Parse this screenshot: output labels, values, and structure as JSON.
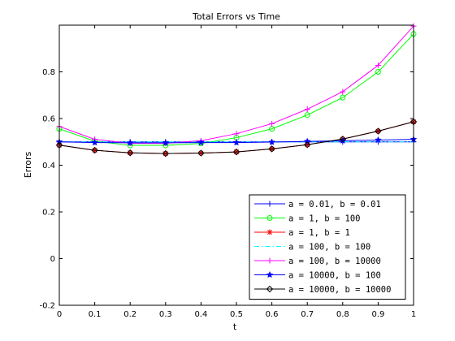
{
  "chart_data": {
    "type": "line",
    "title": "Total Errors vs Time",
    "xlabel": "t",
    "ylabel": "Errors",
    "xlim": [
      0,
      1
    ],
    "ylim": [
      -0.2,
      1
    ],
    "xticks": [
      0,
      0.1,
      0.2,
      0.3,
      0.4,
      0.5,
      0.6,
      0.7,
      0.8,
      0.9,
      1
    ],
    "xtick_labels": [
      "0",
      "0.1",
      "0.2",
      "0.3",
      "0.4",
      "0.5",
      "0.6",
      "0.7",
      "0.8",
      "0.9",
      "1"
    ],
    "yticks": [
      -0.2,
      0,
      0.2,
      0.4,
      0.6,
      0.8
    ],
    "ytick_labels": [
      "-0.2",
      "0",
      "0.2",
      "0.4",
      "0.6",
      "0.8"
    ],
    "grid": false,
    "legend_position": "bottom-right",
    "x": [
      0,
      0.1,
      0.2,
      0.3,
      0.4,
      0.5,
      0.6,
      0.7,
      0.8,
      0.9,
      1
    ],
    "series": [
      {
        "name": "a = 0.01, b = 0.01",
        "color": "#0000ff",
        "marker": "plus",
        "values": [
          0.5,
          0.5,
          0.5,
          0.5,
          0.5,
          0.5,
          0.5,
          0.5,
          0.5,
          0.5,
          0.5
        ]
      },
      {
        "name": "a = 1, b = 100",
        "color": "#00ff00",
        "marker": "circle",
        "values": [
          0.556,
          0.503,
          0.485,
          0.485,
          0.493,
          0.518,
          0.556,
          0.615,
          0.69,
          0.8,
          0.962
        ]
      },
      {
        "name": "a = 1, b = 1",
        "color": "#ff0000",
        "marker": "asterisk",
        "values": [
          0.486,
          0.464,
          0.453,
          0.45,
          0.452,
          0.457,
          0.47,
          0.488,
          0.512,
          0.546,
          0.586
        ]
      },
      {
        "name": "a = 100, b = 100",
        "color": "#00ffff",
        "marker": "none",
        "dash": "dashdot",
        "values": [
          0.5,
          0.5,
          0.5,
          0.5,
          0.5,
          0.5,
          0.5,
          0.5,
          0.5,
          0.5,
          0.5
        ]
      },
      {
        "name": "a = 100, b = 10000",
        "color": "#ff00ff",
        "marker": "plus",
        "values": [
          0.566,
          0.511,
          0.494,
          0.494,
          0.505,
          0.535,
          0.578,
          0.64,
          0.715,
          0.828,
          0.996
        ]
      },
      {
        "name": "a = 10000, b = 100",
        "color": "#0000ff",
        "marker": "star",
        "values": [
          0.5,
          0.497,
          0.496,
          0.496,
          0.497,
          0.497,
          0.499,
          0.502,
          0.505,
          0.508,
          0.511
        ]
      },
      {
        "name": "a = 10000, b = 10000",
        "color": "#000000",
        "marker": "diamond",
        "values": [
          0.486,
          0.464,
          0.453,
          0.45,
          0.452,
          0.457,
          0.47,
          0.488,
          0.512,
          0.546,
          0.586
        ]
      }
    ]
  }
}
